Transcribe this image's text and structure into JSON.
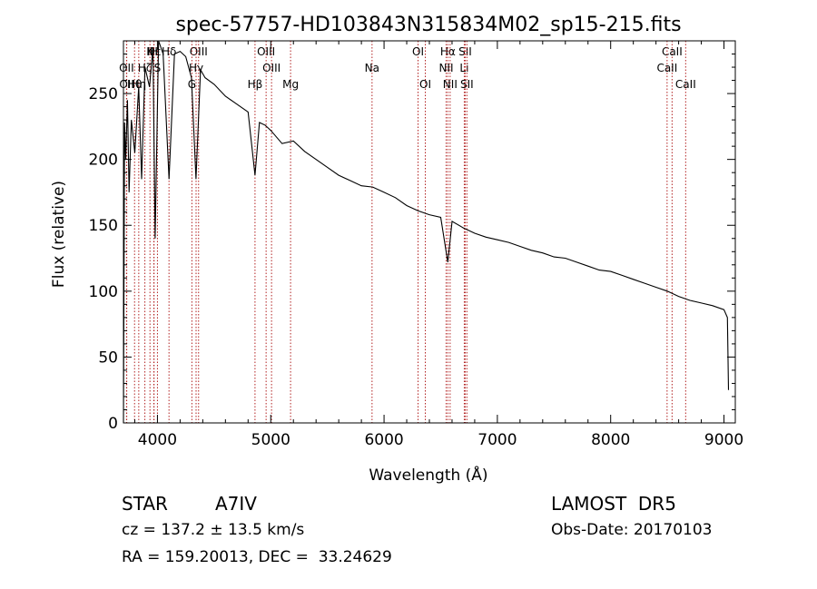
{
  "chart_data": {
    "type": "line",
    "title": "spec-57757-HD103843N315834M02_sp15-215.fits",
    "xlabel": "Wavelength (Å)",
    "ylabel": "Flux (relative)",
    "xlim": [
      3700,
      9100
    ],
    "ylim": [
      0,
      290
    ],
    "x_ticks": [
      4000,
      5000,
      6000,
      7000,
      8000,
      9000
    ],
    "y_ticks": [
      0,
      50,
      100,
      150,
      200,
      250
    ],
    "grid": false,
    "line_color": "#000000",
    "marker_color": "#b22222",
    "series": [
      {
        "x": [
          3700,
          3710,
          3720,
          3735,
          3750,
          3770,
          3800,
          3835,
          3860,
          3890,
          3930,
          3960,
          3980,
          4010,
          4050,
          4102,
          4150,
          4200,
          4250,
          4300,
          4340,
          4380,
          4420,
          4500,
          4600,
          4700,
          4800,
          4861,
          4900,
          4950,
          5000,
          5100,
          5200,
          5300,
          5400,
          5500,
          5600,
          5700,
          5800,
          5900,
          6000,
          6100,
          6200,
          6300,
          6400,
          6500,
          6563,
          6600,
          6700,
          6800,
          6900,
          7000,
          7100,
          7200,
          7300,
          7400,
          7500,
          7600,
          7700,
          7800,
          7900,
          8000,
          8100,
          8200,
          8300,
          8400,
          8500,
          8600,
          8700,
          8800,
          8900,
          9000,
          9030,
          9040
        ],
        "y": [
          0,
          228,
          200,
          245,
          175,
          230,
          205,
          255,
          185,
          270,
          255,
          285,
          140,
          290,
          280,
          185,
          280,
          282,
          278,
          262,
          185,
          268,
          262,
          257,
          248,
          242,
          236,
          188,
          228,
          226,
          222,
          212,
          214,
          206,
          200,
          194,
          188,
          184,
          180,
          179,
          175,
          171,
          165,
          161,
          158,
          156,
          122,
          153,
          148,
          144,
          141,
          139,
          137,
          134,
          131,
          129,
          126,
          125,
          122,
          119,
          116,
          115,
          112,
          109,
          106,
          103,
          100,
          96,
          93,
          91,
          89,
          86,
          80,
          25
        ]
      }
    ],
    "lines": [
      {
        "name": "Hδ",
        "x": 4102,
        "row": 0
      },
      {
        "name": "OII",
        "x": 3727,
        "row": 1
      },
      {
        "name": "OII",
        "x": 3729,
        "row": 2
      },
      {
        "name": "Hε",
        "x": 3970,
        "row": 0
      },
      {
        "name": "Hζ",
        "x": 3889,
        "row": 1
      },
      {
        "name": "Hη",
        "x": 3835,
        "row": 2
      },
      {
        "name": "Hθ",
        "x": 3798,
        "row": 2
      },
      {
        "name": "K",
        "x": 3934,
        "row": 0
      },
      {
        "name": "H",
        "x": 3968,
        "row": 0
      },
      {
        "name": "S",
        "x": 4000,
        "row": 1
      },
      {
        "name": "OIII",
        "x": 4363,
        "row": 0
      },
      {
        "name": "G",
        "x": 4304,
        "row": 2
      },
      {
        "name": "Hγ",
        "x": 4341,
        "row": 1
      },
      {
        "name": "Hβ",
        "x": 4861,
        "row": 2
      },
      {
        "name": "OIII",
        "x": 4959,
        "row": 0
      },
      {
        "name": "OIII",
        "x": 5007,
        "row": 1
      },
      {
        "name": "Mg",
        "x": 5175,
        "row": 2
      },
      {
        "name": "Na",
        "x": 5894,
        "row": 1
      },
      {
        "name": "OI",
        "x": 6300,
        "row": 0
      },
      {
        "name": "OI",
        "x": 6364,
        "row": 2
      },
      {
        "name": "Hα",
        "x": 6563,
        "row": 0
      },
      {
        "name": "NII",
        "x": 6548,
        "row": 1
      },
      {
        "name": "NII",
        "x": 6583,
        "row": 2
      },
      {
        "name": "SII",
        "x": 6716,
        "row": 0
      },
      {
        "name": "Li",
        "x": 6708,
        "row": 1
      },
      {
        "name": "SII",
        "x": 6731,
        "row": 2
      },
      {
        "name": "CaII",
        "x": 8542,
        "row": 0
      },
      {
        "name": "CaII",
        "x": 8498,
        "row": 1
      },
      {
        "name": "CaII",
        "x": 8662,
        "row": 2
      }
    ]
  },
  "info": {
    "class_label": "STAR",
    "subclass": "A7IV",
    "survey": "LAMOST  DR5",
    "cz": "cz = 137.2 ± 13.5 km/s",
    "obs_date": "Obs-Date: 20170103",
    "coords": "RA = 159.20013, DEC =  33.24629"
  }
}
